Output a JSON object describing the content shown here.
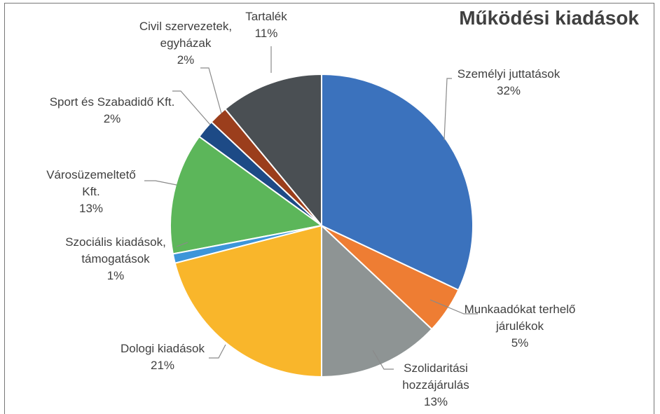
{
  "chart_data": {
    "type": "pie",
    "title": "Működési kiadások",
    "categories": [
      "Személyi juttatások",
      "Munkaadókat terhelő járulékok",
      "Szolidaritási hozzájárulás",
      "Dologi kiadások",
      "Szociális kiadások, támogatások",
      "Városüzemeltető Kft.",
      "Sport és Szabadidő Kft.",
      "Civil szervezetek, egyházak",
      "Tartalék"
    ],
    "values": [
      32,
      5,
      13,
      21,
      1,
      13,
      2,
      2,
      11
    ],
    "value_labels": [
      "32%",
      "5%",
      "13%",
      "21%",
      "1%",
      "13%",
      "2%",
      "2%",
      "11%"
    ],
    "colors": [
      "#3b72bd",
      "#ee7d33",
      "#8e9494",
      "#f9b62b",
      "#3d95d9",
      "#5cb65a",
      "#1d4a86",
      "#9b3e1c",
      "#4a4f53"
    ]
  }
}
